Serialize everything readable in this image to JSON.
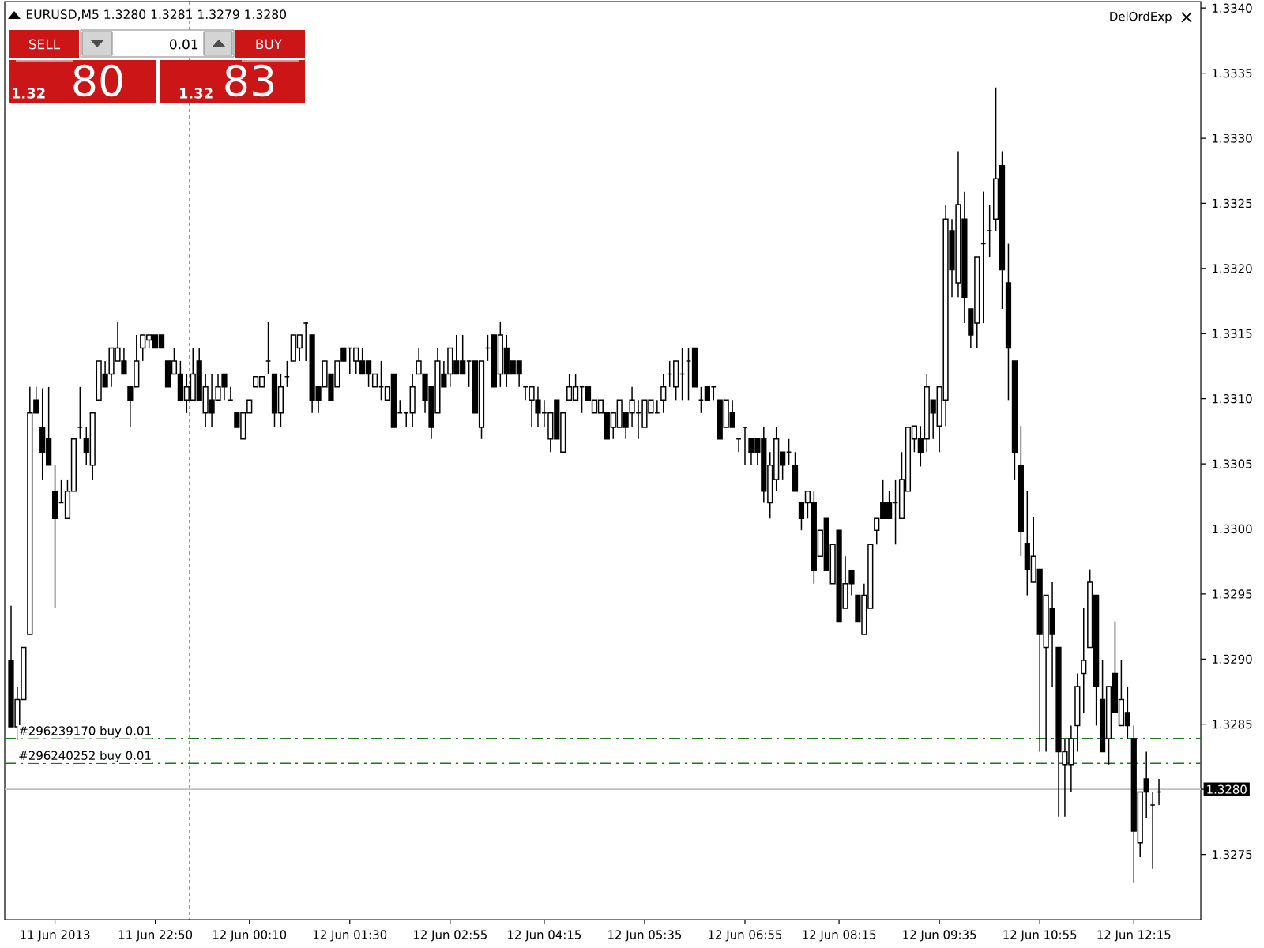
{
  "chart_data": {
    "type": "candlestick",
    "title": "EURUSD,M5  1.3280 1.3281 1.3279 1.3280",
    "color": "#000000",
    "categories": [
      null,
      null,
      null,
      null,
      null,
      null,
      null,
      "11 Jun 2013",
      null,
      null,
      null,
      null,
      null,
      null,
      null,
      null,
      null,
      null,
      null,
      null,
      null,
      null,
      null,
      "11 Jun 22:50",
      null,
      null,
      null,
      null,
      null,
      null,
      null,
      null,
      null,
      null,
      null,
      null,
      null,
      null,
      "12 Jun 00:10",
      null,
      null,
      null,
      null,
      null,
      null,
      null,
      null,
      null,
      null,
      null,
      null,
      null,
      null,
      null,
      "12 Jun 01:30",
      null,
      null,
      null,
      null,
      null,
      null,
      null,
      null,
      null,
      null,
      null,
      null,
      null,
      null,
      null,
      "12 Jun 02:55",
      null,
      null,
      null,
      null,
      null,
      null,
      null,
      null,
      null,
      null,
      null,
      null,
      null,
      null,
      "12 Jun 04:15",
      null,
      null,
      null,
      null,
      null,
      null,
      null,
      null,
      null,
      null,
      null,
      null,
      null,
      null,
      null,
      "12 Jun 05:35",
      null,
      null,
      null,
      null,
      null,
      null,
      null,
      null,
      null,
      null,
      null,
      null,
      null,
      null,
      null,
      "12 Jun 06:55",
      null,
      null,
      null,
      null,
      null,
      null,
      null,
      null,
      null,
      null,
      null,
      null,
      null,
      null,
      "12 Jun 08:15",
      null,
      null,
      null,
      null,
      null,
      null,
      null,
      null,
      null,
      null,
      null,
      null,
      null,
      null,
      null,
      "12 Jun 09:35",
      null,
      null,
      null,
      null,
      null,
      null,
      null,
      null,
      null,
      null,
      null,
      null,
      null,
      null,
      null,
      "12 Jun 10:55",
      null,
      null,
      null,
      null,
      null,
      null,
      null,
      null,
      null,
      null,
      null,
      null,
      null,
      null,
      "12 Jun 12:15",
      null,
      null,
      null,
      null
    ],
    "ohlc": [
      [
        1.32899,
        1.32941,
        1.32848,
        1.32848
      ],
      [
        1.32848,
        1.32879,
        1.32838,
        1.32869
      ],
      [
        1.32869,
        1.32909,
        1.32869,
        1.32909
      ],
      [
        1.32919,
        1.33109,
        1.32919,
        1.33089
      ],
      [
        1.33099,
        1.33109,
        1.33089,
        1.33089
      ],
      [
        1.33078,
        1.33108,
        1.33038,
        1.33059
      ],
      [
        1.33069,
        1.33109,
        1.33049,
        1.33049
      ],
      [
        1.33029,
        1.33049,
        1.32939,
        1.33008
      ],
      [
        1.3302,
        1.33038,
        1.3302,
        1.3302
      ],
      [
        1.33008,
        1.33038,
        1.33008,
        1.33029
      ],
      [
        1.33029,
        1.33069,
        1.33029,
        1.33069
      ],
      [
        1.33078,
        1.33109,
        1.33069,
        1.33078
      ],
      [
        1.33069,
        1.33078,
        1.33049,
        1.33059
      ],
      [
        1.33049,
        1.33089,
        1.33038,
        1.33089
      ],
      [
        1.33099,
        1.33129,
        1.33099,
        1.33129
      ],
      [
        1.33119,
        1.33129,
        1.33109,
        1.33109
      ],
      [
        1.33119,
        1.33139,
        1.33109,
        1.33139
      ],
      [
        1.33129,
        1.33159,
        1.33129,
        1.33139
      ],
      [
        1.33129,
        1.33139,
        1.33119,
        1.33119
      ],
      [
        1.33109,
        1.33109,
        1.33078,
        1.33099
      ],
      [
        1.33109,
        1.33149,
        1.33109,
        1.33129
      ],
      [
        1.33139,
        1.33149,
        1.33129,
        1.33149
      ],
      [
        1.33145,
        1.33149,
        1.33139,
        1.33149
      ],
      [
        1.33149,
        1.33149,
        1.33139,
        1.33139
      ],
      [
        1.33149,
        1.33149,
        1.33139,
        1.33139
      ],
      [
        1.33129,
        1.33129,
        1.33109,
        1.33109
      ],
      [
        1.33119,
        1.33139,
        1.33119,
        1.33129
      ],
      [
        1.33119,
        1.33129,
        1.33099,
        1.33099
      ],
      [
        1.33099,
        1.33119,
        1.33089,
        1.33109
      ],
      [
        1.33099,
        1.33139,
        1.33099,
        1.33119
      ],
      [
        1.33129,
        1.33139,
        1.33099,
        1.33099
      ],
      [
        1.33089,
        1.33119,
        1.33078,
        1.33109
      ],
      [
        1.33099,
        1.33119,
        1.33078,
        1.33089
      ],
      [
        1.33099,
        1.33119,
        1.33099,
        1.33109
      ],
      [
        1.33119,
        1.33119,
        1.33099,
        1.33109
      ],
      [
        1.33099,
        1.33109,
        1.33099,
        1.33099
      ],
      [
        1.33089,
        1.33089,
        1.33078,
        1.33078
      ],
      [
        1.33069,
        1.33089,
        1.33069,
        1.33089
      ],
      [
        1.33089,
        1.33099,
        1.33089,
        1.33099
      ],
      [
        1.33109,
        1.33117,
        1.33109,
        1.33117
      ],
      [
        1.33109,
        1.33117,
        1.33109,
        1.33117
      ],
      [
        1.33129,
        1.33159,
        1.33119,
        1.33129
      ],
      [
        1.33119,
        1.33119,
        1.33078,
        1.33089
      ],
      [
        1.33089,
        1.33119,
        1.33078,
        1.33109
      ],
      [
        1.33117,
        1.33129,
        1.33109,
        1.33117
      ],
      [
        1.33129,
        1.33149,
        1.33129,
        1.33149
      ],
      [
        1.33139,
        1.33149,
        1.33129,
        1.33149
      ],
      [
        1.33158,
        1.33159,
        1.33129,
        1.33158
      ],
      [
        1.33149,
        1.33149,
        1.33089,
        1.33099
      ],
      [
        1.33109,
        1.33109,
        1.33089,
        1.33099
      ],
      [
        1.33109,
        1.33129,
        1.33109,
        1.33129
      ],
      [
        1.33119,
        1.33119,
        1.33099,
        1.33099
      ],
      [
        1.33109,
        1.33129,
        1.33109,
        1.33129
      ],
      [
        1.33139,
        1.33139,
        1.33129,
        1.33129
      ],
      [
        1.33139,
        1.33139,
        1.33119,
        1.33139
      ],
      [
        1.33129,
        1.33139,
        1.33119,
        1.33139
      ],
      [
        1.33129,
        1.33139,
        1.33119,
        1.33119
      ],
      [
        1.33129,
        1.33129,
        1.33109,
        1.33119
      ],
      [
        1.33109,
        1.33119,
        1.33109,
        1.33119
      ],
      [
        1.33109,
        1.33129,
        1.33099,
        1.33109
      ],
      [
        1.33099,
        1.33109,
        1.33099,
        1.33109
      ],
      [
        1.33119,
        1.33119,
        1.33078,
        1.33078
      ],
      [
        1.33089,
        1.33099,
        1.33089,
        1.33089
      ],
      [
        1.33089,
        1.33089,
        1.33078,
        1.33089
      ],
      [
        1.33089,
        1.33119,
        1.33078,
        1.33109
      ],
      [
        1.33119,
        1.33139,
        1.33119,
        1.33129
      ],
      [
        1.33119,
        1.33119,
        1.33089,
        1.33099
      ],
      [
        1.33109,
        1.33109,
        1.33069,
        1.33078
      ],
      [
        1.33089,
        1.33139,
        1.33089,
        1.33129
      ],
      [
        1.33119,
        1.33129,
        1.33109,
        1.33109
      ],
      [
        1.33119,
        1.33139,
        1.33109,
        1.33139
      ],
      [
        1.33129,
        1.33149,
        1.33119,
        1.33119
      ],
      [
        1.33129,
        1.33149,
        1.33119,
        1.33119
      ],
      [
        1.33129,
        1.33129,
        1.33109,
        1.33129
      ],
      [
        1.33129,
        1.33129,
        1.33089,
        1.33089
      ],
      [
        1.33078,
        1.33129,
        1.33069,
        1.33129
      ],
      [
        1.33139,
        1.33149,
        1.33129,
        1.33139
      ],
      [
        1.33149,
        1.33149,
        1.33109,
        1.33109
      ],
      [
        1.33119,
        1.33159,
        1.33109,
        1.33149
      ],
      [
        1.33139,
        1.33149,
        1.33109,
        1.33119
      ],
      [
        1.33129,
        1.33129,
        1.33119,
        1.33119
      ],
      [
        1.33129,
        1.33129,
        1.33109,
        1.33119
      ],
      [
        1.33109,
        1.33109,
        1.33099,
        1.33109
      ],
      [
        1.33099,
        1.33109,
        1.33078,
        1.33109
      ],
      [
        1.33099,
        1.33109,
        1.33078,
        1.33089
      ],
      [
        1.33089,
        1.33099,
        1.33078,
        1.33089
      ],
      [
        1.33069,
        1.33089,
        1.33059,
        1.33089
      ],
      [
        1.33099,
        1.33099,
        1.33069,
        1.33069
      ],
      [
        1.33059,
        1.33089,
        1.33059,
        1.33089
      ],
      [
        1.33099,
        1.33119,
        1.33099,
        1.33109
      ],
      [
        1.33099,
        1.33119,
        1.33099,
        1.33109
      ],
      [
        1.33109,
        1.33109,
        1.33089,
        1.33109
      ],
      [
        1.33109,
        1.33109,
        1.33099,
        1.33099
      ],
      [
        1.33089,
        1.33099,
        1.33089,
        1.33099
      ],
      [
        1.33089,
        1.33099,
        1.33089,
        1.33099
      ],
      [
        1.33089,
        1.33089,
        1.33069,
        1.33069
      ],
      [
        1.33078,
        1.33089,
        1.33069,
        1.33089
      ],
      [
        1.33078,
        1.33099,
        1.33078,
        1.33099
      ],
      [
        1.33089,
        1.33089,
        1.33069,
        1.33078
      ],
      [
        1.33089,
        1.33109,
        1.33078,
        1.33099
      ],
      [
        1.33089,
        1.33099,
        1.33069,
        1.33089
      ],
      [
        1.33078,
        1.33099,
        1.33078,
        1.33099
      ],
      [
        1.33089,
        1.33099,
        1.33089,
        1.33099
      ],
      [
        1.33089,
        1.33099,
        1.33089,
        1.33089
      ],
      [
        1.33099,
        1.33119,
        1.33089,
        1.33109
      ],
      [
        1.33119,
        1.33129,
        1.33109,
        1.33119
      ],
      [
        1.33109,
        1.33129,
        1.33099,
        1.33129
      ],
      [
        1.33119,
        1.33139,
        1.33099,
        1.33119
      ],
      [
        1.33129,
        1.33139,
        1.33099,
        1.33129
      ],
      [
        1.33139,
        1.33139,
        1.33109,
        1.33109
      ],
      [
        1.33099,
        1.33109,
        1.33089,
        1.33099
      ],
      [
        1.33109,
        1.33109,
        1.33099,
        1.33099
      ],
      [
        1.33109,
        1.33109,
        1.33099,
        1.33109
      ],
      [
        1.33099,
        1.33099,
        1.33069,
        1.33069
      ],
      [
        1.33078,
        1.33099,
        1.33078,
        1.33099
      ],
      [
        1.33089,
        1.33099,
        1.33078,
        1.33078
      ],
      [
        1.33069,
        1.33069,
        1.33059,
        1.33069
      ],
      [
        1.33078,
        1.33078,
        1.33049,
        1.33078
      ],
      [
        1.33069,
        1.33069,
        1.33049,
        1.33059
      ],
      [
        1.33069,
        1.33069,
        1.33049,
        1.33059
      ],
      [
        1.33069,
        1.33078,
        1.3302,
        1.33029
      ],
      [
        1.3302,
        1.33059,
        1.33008,
        1.33049
      ],
      [
        1.33038,
        1.33078,
        1.33029,
        1.33069
      ],
      [
        1.33059,
        1.33059,
        1.33038,
        1.33049
      ],
      [
        1.33059,
        1.33069,
        1.33049,
        1.33059
      ],
      [
        1.33049,
        1.33059,
        1.33029,
        1.33029
      ],
      [
        1.3302,
        1.3302,
        1.32999,
        1.33008
      ],
      [
        1.3302,
        1.33029,
        1.33008,
        1.33029
      ],
      [
        1.3302,
        1.33029,
        1.32958,
        1.32968
      ],
      [
        1.32979,
        1.32999,
        1.32979,
        1.32999
      ],
      [
        1.33008,
        1.33008,
        1.32968,
        1.32968
      ],
      [
        1.32958,
        1.32988,
        1.32958,
        1.32988
      ],
      [
        1.32999,
        1.32999,
        1.32929,
        1.32929
      ],
      [
        1.32939,
        1.32979,
        1.32939,
        1.32958
      ],
      [
        1.32968,
        1.32968,
        1.32949,
        1.32958
      ],
      [
        1.32949,
        1.32949,
        1.32929,
        1.32929
      ],
      [
        1.32919,
        1.32958,
        1.32919,
        1.32949
      ],
      [
        1.32939,
        1.32988,
        1.32939,
        1.32988
      ],
      [
        1.32999,
        1.33008,
        1.32988,
        1.33008
      ],
      [
        1.3302,
        1.33038,
        1.33008,
        1.33008
      ],
      [
        1.3302,
        1.33029,
        1.33008,
        1.33008
      ],
      [
        1.3302,
        1.33038,
        1.32988,
        1.3302
      ],
      [
        1.33008,
        1.33059,
        1.33008,
        1.33038
      ],
      [
        1.33029,
        1.33078,
        1.33029,
        1.33078
      ],
      [
        1.33069,
        1.33079,
        1.33059,
        1.33079
      ],
      [
        1.33069,
        1.33079,
        1.33048,
        1.33059
      ],
      [
        1.33069,
        1.33119,
        1.33059,
        1.33109
      ],
      [
        1.33099,
        1.33099,
        1.33069,
        1.33089
      ],
      [
        1.33079,
        1.33109,
        1.33059,
        1.33109
      ],
      [
        1.33099,
        1.33249,
        1.33079,
        1.33238
      ],
      [
        1.33229,
        1.33238,
        1.33178,
        1.33199
      ],
      [
        1.33189,
        1.3329,
        1.33178,
        1.33249
      ],
      [
        1.33238,
        1.33259,
        1.33158,
        1.33178
      ],
      [
        1.33169,
        1.33169,
        1.33139,
        1.33149
      ],
      [
        1.33158,
        1.33209,
        1.33139,
        1.33209
      ],
      [
        1.33219,
        1.33259,
        1.33158,
        1.33219
      ],
      [
        1.33229,
        1.33249,
        1.33209,
        1.33229
      ],
      [
        1.33238,
        1.33339,
        1.33229,
        1.33269
      ],
      [
        1.33279,
        1.3329,
        1.33169,
        1.33199
      ],
      [
        1.33189,
        1.33219,
        1.33099,
        1.33139
      ],
      [
        1.33129,
        1.33129,
        1.33038,
        1.33059
      ],
      [
        1.33049,
        1.33079,
        1.32979,
        1.32998
      ],
      [
        1.32989,
        1.33029,
        1.32949,
        1.32969
      ],
      [
        1.32959,
        1.33009,
        1.32959,
        1.32979
      ],
      [
        1.32969,
        1.32969,
        1.32829,
        1.32919
      ],
      [
        1.32909,
        1.32949,
        1.32829,
        1.32949
      ],
      [
        1.32939,
        1.32959,
        1.32879,
        1.32919
      ],
      [
        1.32909,
        1.32909,
        1.32779,
        1.32829
      ],
      [
        1.32819,
        1.32839,
        1.32779,
        1.32829
      ],
      [
        1.32819,
        1.32849,
        1.32798,
        1.32839
      ],
      [
        1.32849,
        1.32889,
        1.32829,
        1.32879
      ],
      [
        1.32889,
        1.32939,
        1.32859,
        1.32899
      ],
      [
        1.32909,
        1.32969,
        1.32909,
        1.32959
      ],
      [
        1.32949,
        1.32949,
        1.32849,
        1.32879
      ],
      [
        1.32869,
        1.32899,
        1.32829,
        1.32829
      ],
      [
        1.32839,
        1.32879,
        1.32819,
        1.32879
      ],
      [
        1.32889,
        1.32929,
        1.32859,
        1.32859
      ],
      [
        1.32849,
        1.32899,
        1.32849,
        1.32869
      ],
      [
        1.32859,
        1.32879,
        1.32839,
        1.32849
      ],
      [
        1.32839,
        1.32849,
        1.32728,
        1.32768
      ],
      [
        1.32759,
        1.32798,
        1.32748,
        1.32798
      ],
      [
        1.32808,
        1.32829,
        1.32778,
        1.32798
      ],
      [
        1.32788,
        1.32798,
        1.32739,
        1.32788
      ],
      [
        1.32798,
        1.32808,
        1.32788,
        1.32798
      ]
    ],
    "ylim": [
      1.327,
      1.33405
    ],
    "yticks": [
      1.3275,
      {
        "value": 1.328,
        "label": null
      },
      1.3285,
      {
        "value": 1.329,
        "label": "1.3290"
      },
      1.3295,
      {
        "value": 1.33,
        "label": "1.3300"
      },
      1.3305,
      {
        "value": 1.331,
        "label": "1.3310"
      },
      1.3315,
      {
        "value": 1.332,
        "label": "1.3320"
      },
      1.3325,
      {
        "value": 1.333,
        "label": "1.3330"
      },
      1.3335,
      {
        "value": 1.334,
        "label": "1.3340"
      }
    ],
    "ref_lines": [
      {
        "axis": "y",
        "value": 1.32839,
        "label": "#296239170 buy 0.01",
        "color": "#1a7a1a",
        "line_style": "dashdot"
      },
      {
        "axis": "y",
        "value": 1.3282,
        "label": "#296240252 buy 0.01",
        "color": "#1a7a1a",
        "line_style": "dashdot"
      },
      {
        "axis": "y",
        "value": 1.328,
        "label": "1.3280",
        "color": "#c0c0c0",
        "line_style": "solid"
      }
    ],
    "annotations": [
      "DelOrdExp",
      "SELL",
      "0.01",
      "BUY",
      "1.32",
      "80",
      "1.32",
      "83"
    ]
  }
}
